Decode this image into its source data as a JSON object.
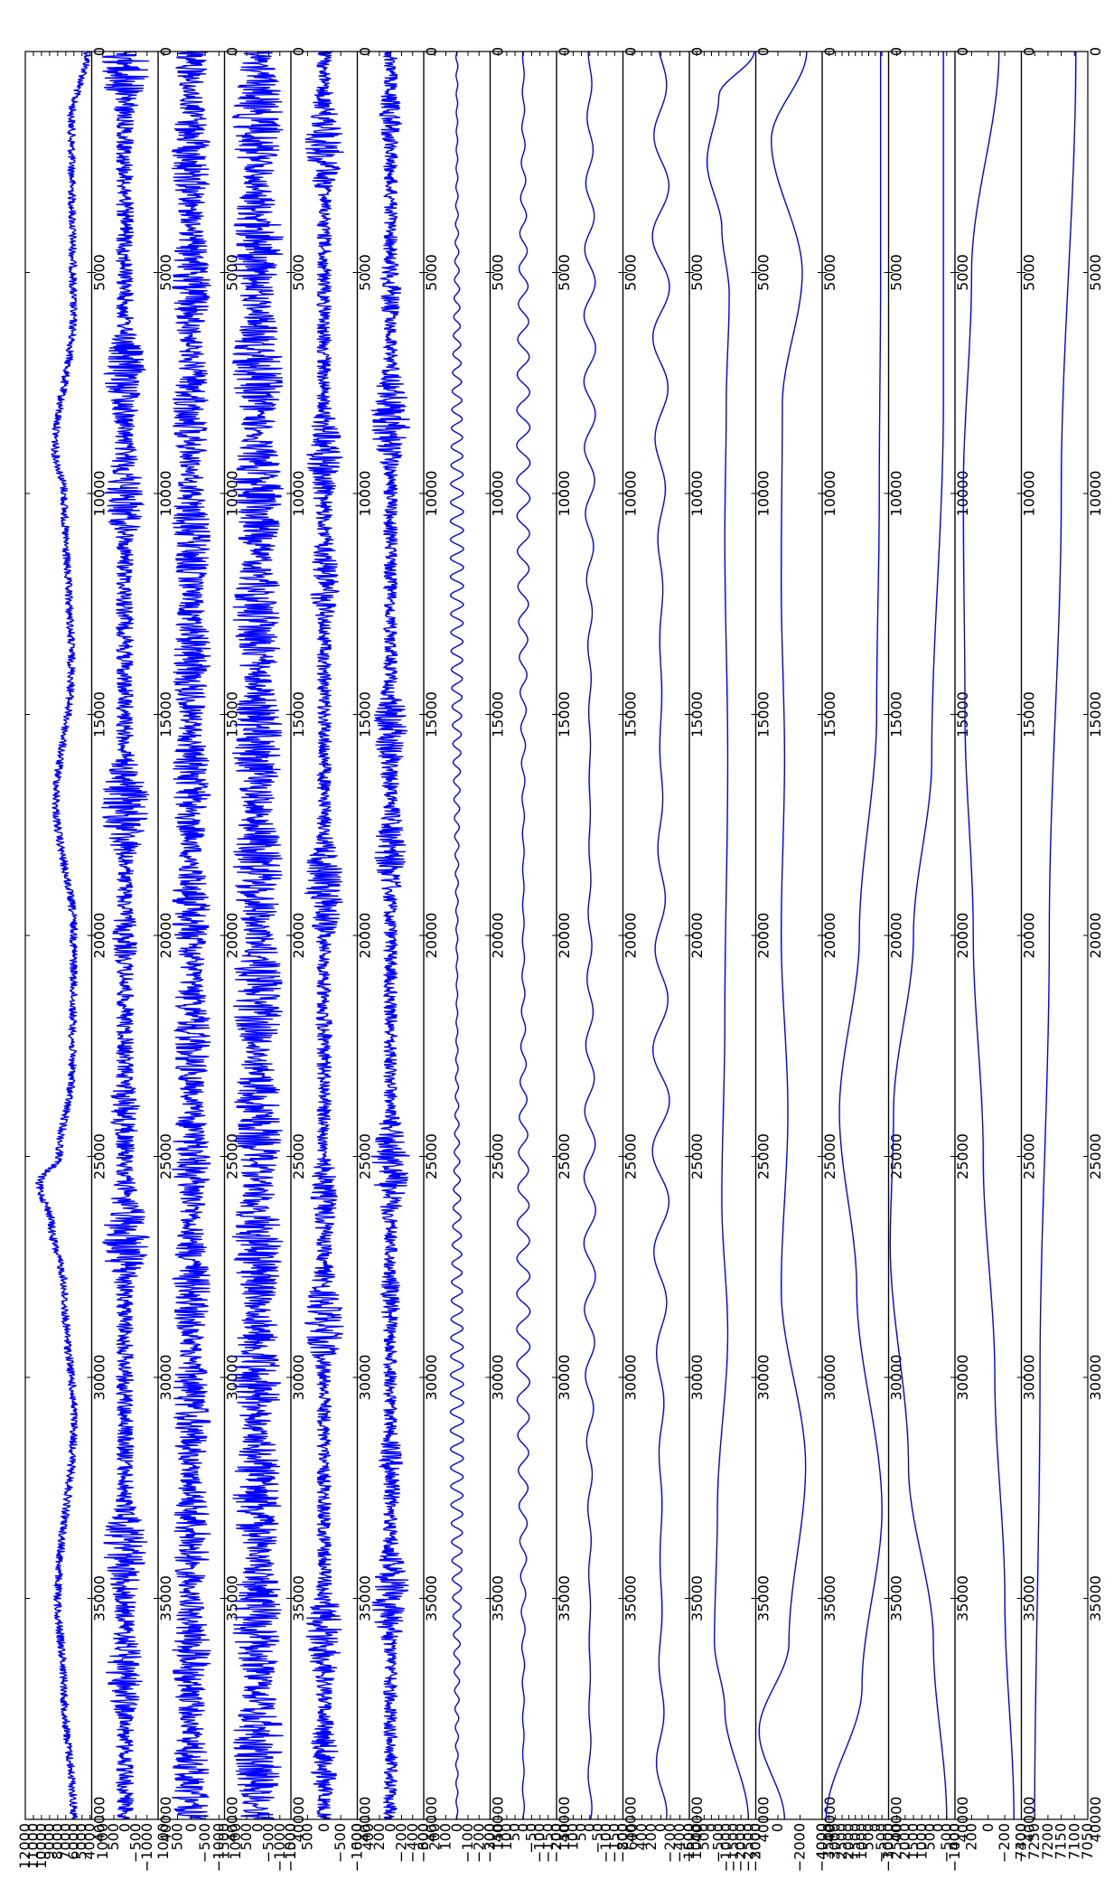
{
  "chart_data": {
    "type": "line",
    "orientation": "rotated-90",
    "description_note": "",
    "line_color": "#0000ff",
    "x_axis": {
      "range": [
        0,
        40000
      ],
      "ticks": [
        0,
        5000,
        10000,
        15000,
        20000,
        25000,
        30000,
        35000,
        40000
      ],
      "tick_labels": [
        "0",
        "5000",
        "10000",
        "15000",
        "20000",
        "25000",
        "30000",
        "35000",
        "40000"
      ]
    },
    "panels": [
      {
        "y_range": [
          3800,
          12000
        ],
        "y_ticks": [
          4000,
          5000,
          6000,
          7000,
          8000,
          9000,
          10000,
          11000,
          12000
        ],
        "y_tick_labels": [
          "4000",
          "5000",
          "6000",
          "7000",
          "8000",
          "9000",
          "10000",
          "11000",
          "12000"
        ],
        "signal": "envelope",
        "base": 6200,
        "amplitude": 1200,
        "trend": [
          [
            0,
            4300
          ],
          [
            1500,
            6300
          ],
          [
            6000,
            6100
          ],
          [
            9000,
            8300
          ],
          [
            10000,
            7200
          ],
          [
            14000,
            6300
          ],
          [
            17000,
            8200
          ],
          [
            20000,
            6000
          ],
          [
            23000,
            6200
          ],
          [
            25000,
            7800
          ],
          [
            25600,
            10300
          ],
          [
            26500,
            8800
          ],
          [
            28000,
            7200
          ],
          [
            31000,
            6000
          ],
          [
            35000,
            8000
          ],
          [
            37000,
            7200
          ],
          [
            40000,
            6000
          ]
        ]
      },
      {
        "y_range": [
          -1500,
          1500
        ],
        "y_ticks": [
          -1000,
          -500,
          0,
          500,
          1000
        ],
        "y_tick_labels": [
          "−1000",
          "−500",
          "0",
          "500",
          "1000"
        ],
        "signal": "bursty-noise",
        "base": 0,
        "amplitude": 1100
      },
      {
        "y_range": [
          -1200,
          1200
        ],
        "y_ticks": [
          -1000,
          -500,
          0,
          500,
          1000
        ],
        "y_tick_labels": [
          "−1000",
          "−500",
          "0",
          "500",
          "1000"
        ],
        "signal": "noise",
        "base": 0,
        "amplitude": 700
      },
      {
        "y_range": [
          -1500,
          1500
        ],
        "y_ticks": [
          -1500,
          -1000,
          -500,
          0,
          500,
          1000,
          1500
        ],
        "y_tick_labels": [
          "−1500",
          "−1000",
          "−500",
          "0",
          "500",
          "1000",
          "1500"
        ],
        "signal": "noise",
        "base": 0,
        "amplitude": 1150
      },
      {
        "y_range": [
          -1000,
          1000
        ],
        "y_ticks": [
          -1000,
          -500,
          0,
          500,
          1000
        ],
        "y_tick_labels": [
          "−1000",
          "−500",
          "0",
          "500",
          "1000"
        ],
        "signal": "bursty-noise",
        "base": 0,
        "amplitude": 600
      },
      {
        "y_range": [
          -600,
          600
        ],
        "y_ticks": [
          -600,
          -400,
          -200,
          0,
          200,
          400,
          600
        ],
        "y_tick_labels": [
          "−600",
          "−400",
          "−200",
          "0",
          "200",
          "400",
          "600"
        ],
        "signal": "bursty-noise",
        "base": 0,
        "amplitude": 350
      },
      {
        "y_range": [
          -300,
          300
        ],
        "y_ticks": [
          -300,
          -200,
          -100,
          0,
          100,
          200,
          300
        ],
        "y_tick_labels": [
          "−300",
          "−200",
          "−100",
          "0",
          "100",
          "200",
          "300"
        ],
        "signal": "oscillation",
        "base": 0,
        "amplitude": 60,
        "period": 420
      },
      {
        "y_range": [
          -200,
          200
        ],
        "y_ticks": [
          -200,
          -150,
          -100,
          -50,
          0,
          50,
          100,
          150,
          200
        ],
        "y_tick_labels": [
          "−200",
          "−150",
          "−100",
          "−50",
          "0",
          "50",
          "100",
          "150",
          "200"
        ],
        "signal": "oscillation",
        "base": 0,
        "amplitude": 40,
        "period": 800
      },
      {
        "y_range": [
          -200,
          200
        ],
        "y_ticks": [
          -200,
          -150,
          -100,
          -50,
          0,
          50,
          100,
          150,
          200
        ],
        "y_tick_labels": [
          "−200",
          "−150",
          "−100",
          "−50",
          "0",
          "50",
          "100",
          "150",
          "200"
        ],
        "signal": "oscillation",
        "base": 0,
        "amplitude": 35,
        "period": 1500
      },
      {
        "y_range": [
          -600,
          800
        ],
        "y_ticks": [
          -600,
          -400,
          -200,
          0,
          200,
          400,
          600,
          800
        ],
        "y_tick_labels": [
          "−600",
          "−400",
          "−200",
          "0",
          "200",
          "400",
          "600",
          "800"
        ],
        "signal": "oscillation",
        "base": 0,
        "amplitude": 180,
        "period": 2300
      },
      {
        "y_range": [
          -3000,
          1500
        ],
        "y_ticks": [
          -3000,
          -2500,
          -2000,
          -1500,
          -1000,
          -500,
          0,
          500,
          1000,
          1500
        ],
        "y_tick_labels": [
          "−3000",
          "−2500",
          "−2000",
          "−1500",
          "−1000",
          "−500",
          "0",
          "500",
          "1000",
          "1500"
        ],
        "signal": "smooth",
        "points": [
          [
            0,
            -2900
          ],
          [
            1000,
            -500
          ],
          [
            2500,
            300
          ],
          [
            4000,
            -700
          ],
          [
            5500,
            -1200
          ],
          [
            8000,
            -1000
          ],
          [
            11000,
            -900
          ],
          [
            16000,
            -1100
          ],
          [
            22000,
            -900
          ],
          [
            26000,
            -700
          ],
          [
            29000,
            -1100
          ],
          [
            33000,
            -400
          ],
          [
            36000,
            -200
          ],
          [
            37500,
            -900
          ],
          [
            40000,
            -2500
          ]
        ]
      },
      {
        "y_range": [
          -4000,
          2000
        ],
        "y_ticks": [
          -4000,
          -2000,
          0,
          2000
        ],
        "y_tick_labels": [
          "−4000",
          "−2000",
          "0",
          "2000"
        ],
        "signal": "smooth",
        "points": [
          [
            0,
            -2600
          ],
          [
            2000,
            600
          ],
          [
            5000,
            -2200
          ],
          [
            8000,
            -400
          ],
          [
            12000,
            -300
          ],
          [
            16000,
            -600
          ],
          [
            20000,
            -300
          ],
          [
            24000,
            -900
          ],
          [
            28000,
            -300
          ],
          [
            32000,
            -2500
          ],
          [
            36000,
            -1000
          ],
          [
            38000,
            1700
          ],
          [
            40000,
            -600
          ]
        ]
      },
      {
        "y_range": [
          -1000,
          4000
        ],
        "y_ticks": [
          -1000,
          -500,
          0,
          500,
          1000,
          1500,
          2000,
          2500,
          3000,
          3500,
          4000
        ],
        "y_tick_labels": [
          "−1000",
          "−500",
          "0",
          "500",
          "1000",
          "1500",
          "2000",
          "2500",
          "3000",
          "3500",
          "4000"
        ],
        "signal": "smooth",
        "points": [
          [
            0,
            -400
          ],
          [
            5000,
            -400
          ],
          [
            10000,
            -300
          ],
          [
            15000,
            -100
          ],
          [
            20000,
            1200
          ],
          [
            24000,
            2700
          ],
          [
            28000,
            1400
          ],
          [
            33000,
            -500
          ],
          [
            37000,
            1000
          ],
          [
            40000,
            3700
          ]
        ]
      },
      {
        "y_range": [
          -1000,
          3000
        ],
        "y_ticks": [
          -1000,
          -500,
          0,
          500,
          1000,
          1500,
          2000,
          2500,
          3000
        ],
        "y_tick_labels": [
          "−1000",
          "−500",
          "0",
          "500",
          "1000",
          "1500",
          "2000",
          "2500",
          "3000"
        ],
        "signal": "smooth",
        "points": [
          [
            0,
            -300
          ],
          [
            8000,
            -300
          ],
          [
            16000,
            400
          ],
          [
            20000,
            1500
          ],
          [
            24000,
            2700
          ],
          [
            27000,
            2900
          ],
          [
            32000,
            1800
          ],
          [
            36000,
            300
          ],
          [
            40000,
            -500
          ]
        ]
      },
      {
        "y_range": [
          -400,
          400
        ],
        "y_ticks": [
          -400,
          -200,
          0,
          200,
          400
        ],
        "y_tick_labels": [
          "−400",
          "−200",
          "0",
          "200",
          "400"
        ],
        "signal": "smooth",
        "points": [
          [
            0,
            -130
          ],
          [
            5000,
            200
          ],
          [
            10000,
            300
          ],
          [
            15000,
            280
          ],
          [
            20000,
            180
          ],
          [
            25000,
            60
          ],
          [
            30000,
            -80
          ],
          [
            35000,
            -200
          ],
          [
            40000,
            -310
          ]
        ]
      },
      {
        "y_range": [
          7050,
          7300
        ],
        "y_ticks": [
          7050,
          7100,
          7150,
          7200,
          7250,
          7300
        ],
        "y_tick_labels": [
          "7050",
          "7100",
          "7150",
          "7200",
          "7250",
          "7300"
        ],
        "signal": "smooth",
        "points": [
          [
            0,
            7095
          ],
          [
            10000,
            7150
          ],
          [
            20000,
            7195
          ],
          [
            30000,
            7230
          ],
          [
            40000,
            7250
          ]
        ]
      }
    ]
  }
}
